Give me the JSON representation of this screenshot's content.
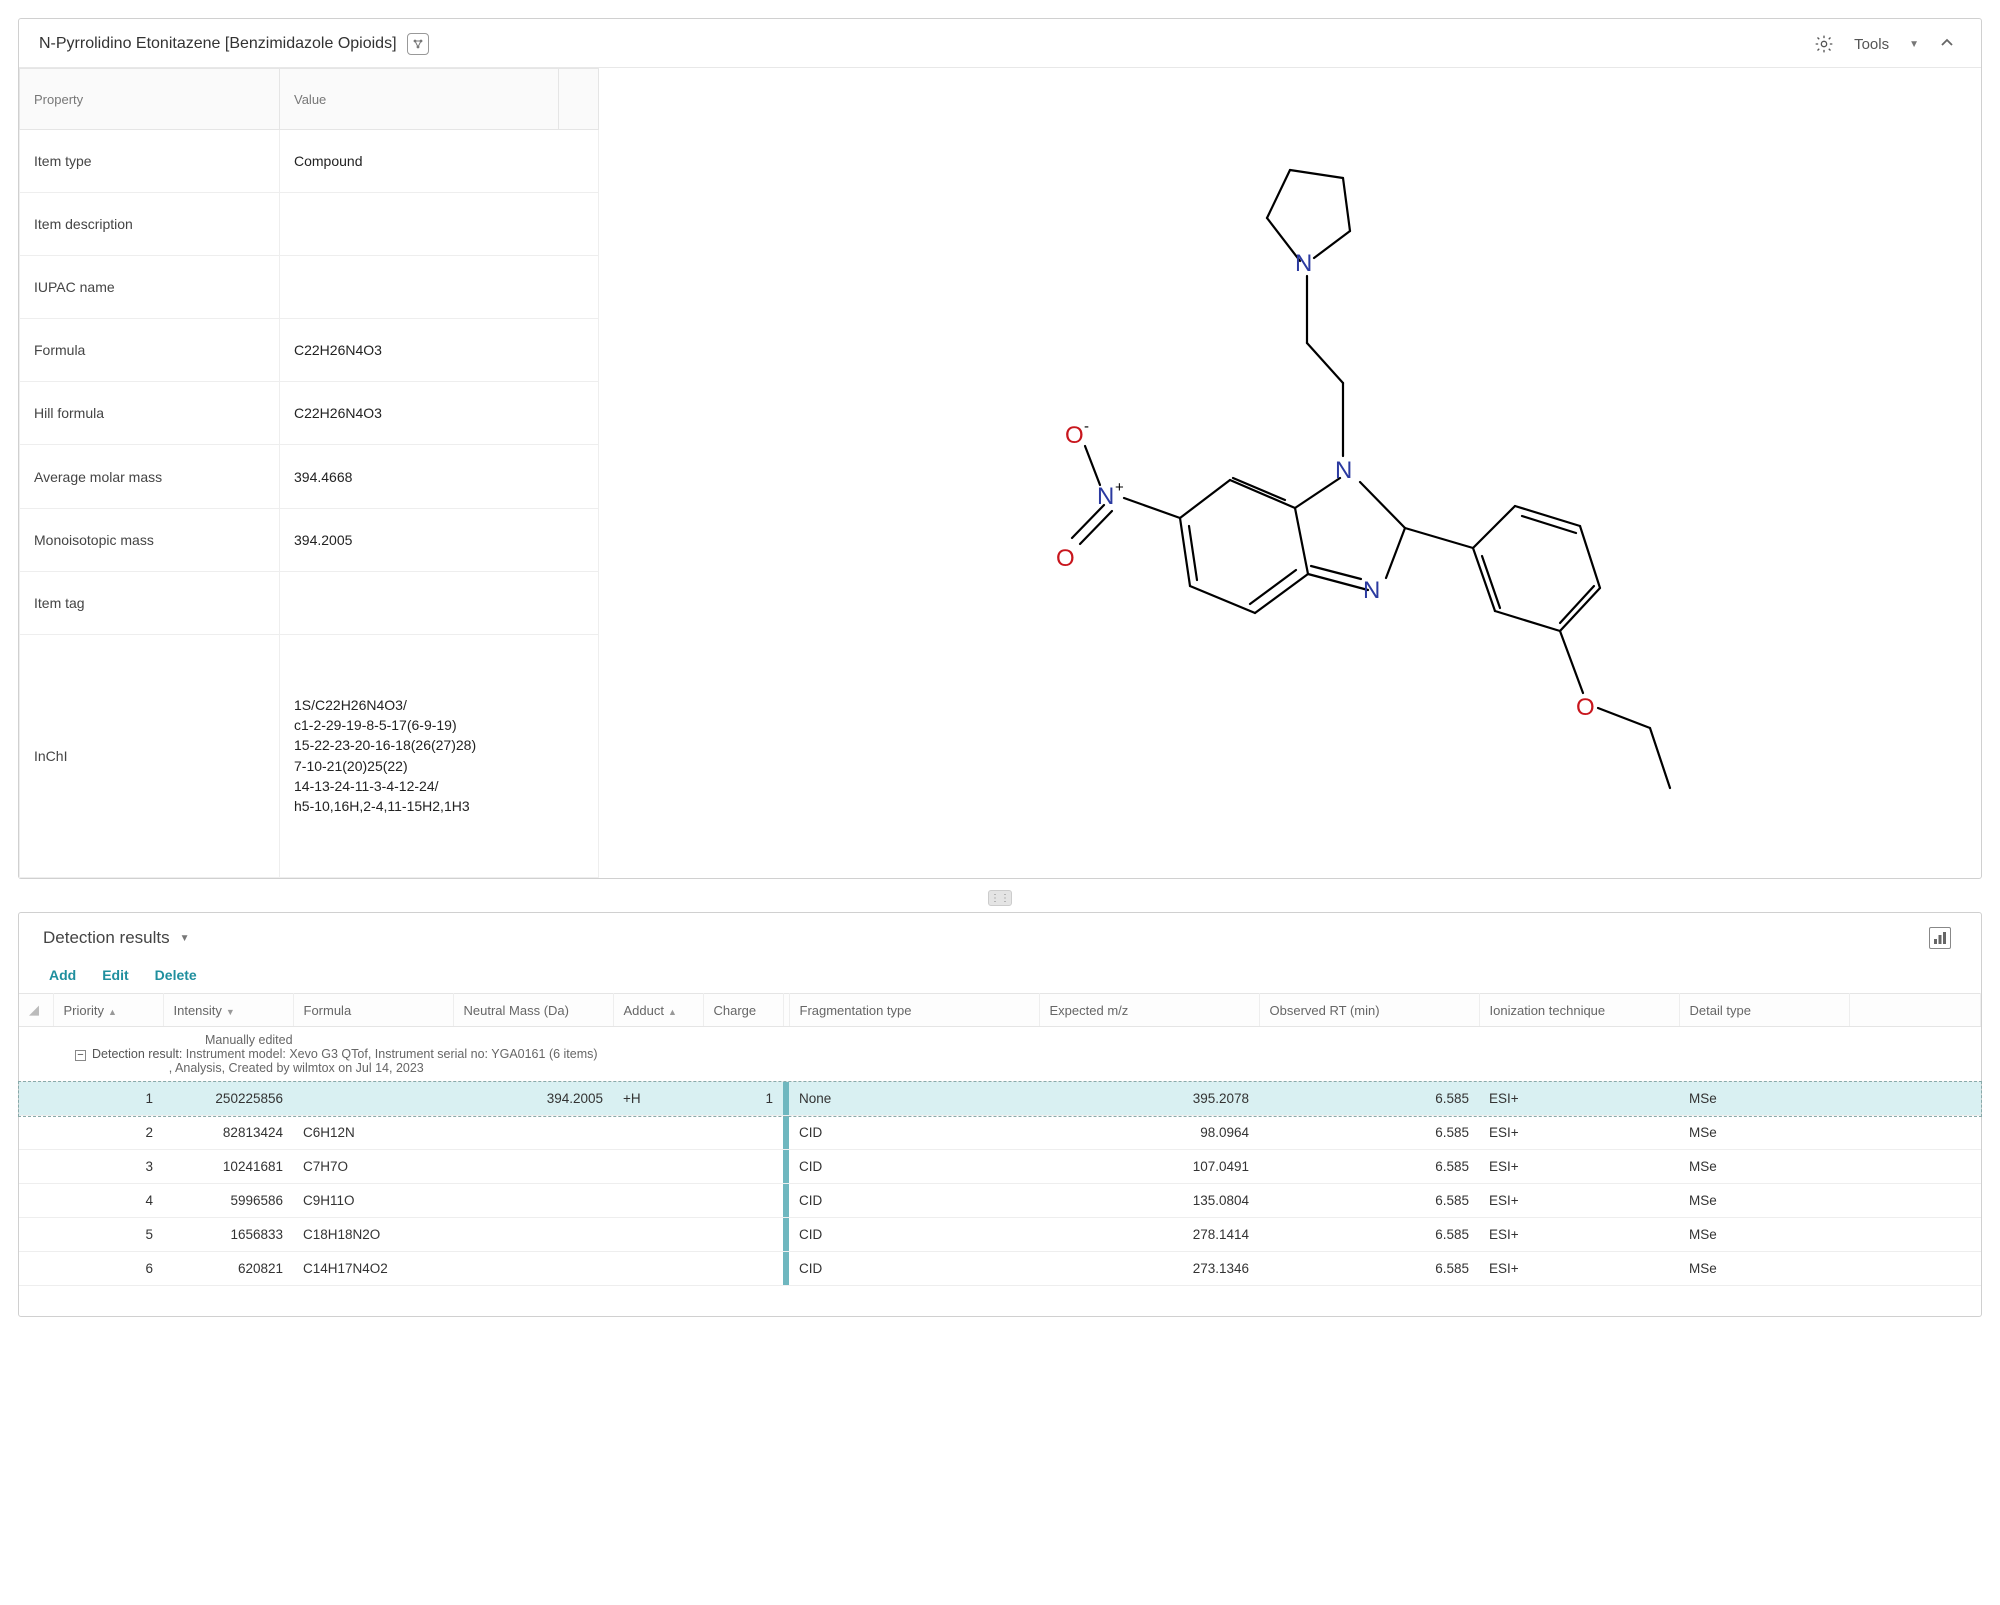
{
  "header": {
    "title": "N-Pyrrolidino Etonitazene  [Benzimidazole Opioids]",
    "tools_label": "Tools"
  },
  "prop_headers": {
    "property": "Property",
    "value": "Value"
  },
  "props": {
    "item_type_k": "Item type",
    "item_type_v": "Compound",
    "item_desc_k": "Item description",
    "item_desc_v": "",
    "iupac_k": "IUPAC name",
    "iupac_v": "",
    "formula_k": "Formula",
    "formula_v": "C22H26N4O3",
    "hill_k": "Hill formula",
    "hill_v": "C22H26N4O3",
    "avgmass_k": "Average molar mass",
    "avgmass_v": "394.4668",
    "mono_k": "Monoisotopic mass",
    "mono_v": "394.2005",
    "tag_k": "Item tag",
    "tag_v": "",
    "inchi_k": "InChI",
    "inchi_v": "1S/C22H26N4O3/\nc1-2-29-19-8-5-17(6-9-19)\n15-22-23-20-16-18(26(27)28)\n7-10-21(20)25(22)\n14-13-24-11-3-4-12-24/\nh5-10,16H,2-4,11-15H2,1H3"
  },
  "structure": {
    "atom_colors": {
      "C": "#000000",
      "N": "#2b3aa0",
      "O": "#c8161d"
    },
    "bond_color": "#000000",
    "background": "#ffffff"
  },
  "detection": {
    "title": "Detection results",
    "actions": {
      "add": "Add",
      "edit": "Edit",
      "delete": "Delete"
    },
    "columns": {
      "priority": "Priority",
      "intensity": "Intensity",
      "formula": "Formula",
      "nmass": "Neutral Mass (Da)",
      "adduct": "Adduct",
      "charge": "Charge",
      "frag": "Fragmentation type",
      "mz": "Expected m/z",
      "rt": "Observed RT (min)",
      "ion": "Ionization technique",
      "detail": "Detail type"
    },
    "group_me": "Manually edited",
    "group_label": "Detection result:",
    "group_text": "Instrument model: Xevo G3 QTof, Instrument serial no: YGA0161 (6 items)\n, Analysis, Created by wilmtox on Jul 14, 2023",
    "rows": [
      {
        "priority": "1",
        "intensity": "250225856",
        "formula": "",
        "nmass": "394.2005",
        "adduct": "+H",
        "charge": "1",
        "frag": "None",
        "mz": "395.2078",
        "rt": "6.585",
        "ion": "ESI+",
        "detail": "MSe"
      },
      {
        "priority": "2",
        "intensity": "82813424",
        "formula": "C6H12N",
        "nmass": "",
        "adduct": "",
        "charge": "",
        "frag": "CID",
        "mz": "98.0964",
        "rt": "6.585",
        "ion": "ESI+",
        "detail": "MSe"
      },
      {
        "priority": "3",
        "intensity": "10241681",
        "formula": "C7H7O",
        "nmass": "",
        "adduct": "",
        "charge": "",
        "frag": "CID",
        "mz": "107.0491",
        "rt": "6.585",
        "ion": "ESI+",
        "detail": "MSe"
      },
      {
        "priority": "4",
        "intensity": "5996586",
        "formula": "C9H11O",
        "nmass": "",
        "adduct": "",
        "charge": "",
        "frag": "CID",
        "mz": "135.0804",
        "rt": "6.585",
        "ion": "ESI+",
        "detail": "MSe"
      },
      {
        "priority": "5",
        "intensity": "1656833",
        "formula": "C18H18N2O",
        "nmass": "",
        "adduct": "",
        "charge": "",
        "frag": "CID",
        "mz": "278.1414",
        "rt": "6.585",
        "ion": "ESI+",
        "detail": "MSe"
      },
      {
        "priority": "6",
        "intensity": "620821",
        "formula": "C14H17N4O2",
        "nmass": "",
        "adduct": "",
        "charge": "",
        "frag": "CID",
        "mz": "273.1346",
        "rt": "6.585",
        "ion": "ESI+",
        "detail": "MSe"
      }
    ]
  }
}
